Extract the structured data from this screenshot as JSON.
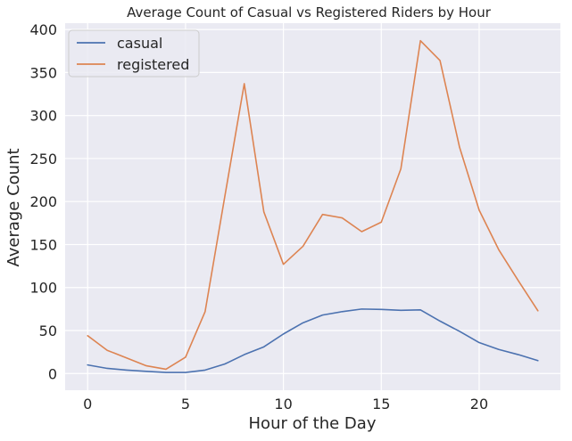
{
  "colors": {
    "plot_background": "#EAEAF2",
    "grid": "#FFFFFF",
    "text": "#262626",
    "legend_border": "#CCCCCC"
  },
  "chart_data": {
    "type": "line",
    "title": "Average Count of Casual vs Registered Riders by Hour",
    "xlabel": "Hour of the Day",
    "ylabel": "Average Count",
    "x": [
      0,
      1,
      2,
      3,
      4,
      5,
      6,
      7,
      8,
      9,
      10,
      11,
      12,
      13,
      14,
      15,
      16,
      17,
      18,
      19,
      20,
      21,
      22,
      23
    ],
    "xlim": [
      -1.15,
      24.15
    ],
    "ylim": [
      -19.4,
      407.4
    ],
    "xticks": [
      0,
      5,
      10,
      15,
      20
    ],
    "yticks": [
      0,
      50,
      100,
      150,
      200,
      250,
      300,
      350,
      400
    ],
    "grid": true,
    "legend_position": "upper left",
    "series": [
      {
        "name": "casual",
        "color": "#4C72B0",
        "values": [
          10,
          6,
          4,
          2.5,
          1.2,
          1.3,
          4,
          11,
          22,
          31,
          46,
          59,
          68,
          72,
          75,
          74.5,
          73.5,
          74,
          61,
          49,
          36,
          28,
          22,
          15
        ]
      },
      {
        "name": "registered",
        "color": "#DD8452",
        "values": [
          44,
          27,
          18,
          9,
          5,
          19,
          72,
          205,
          337,
          188,
          127,
          148,
          185,
          181,
          165,
          176,
          238,
          387,
          364,
          263,
          190,
          144,
          108,
          73
        ]
      }
    ]
  }
}
